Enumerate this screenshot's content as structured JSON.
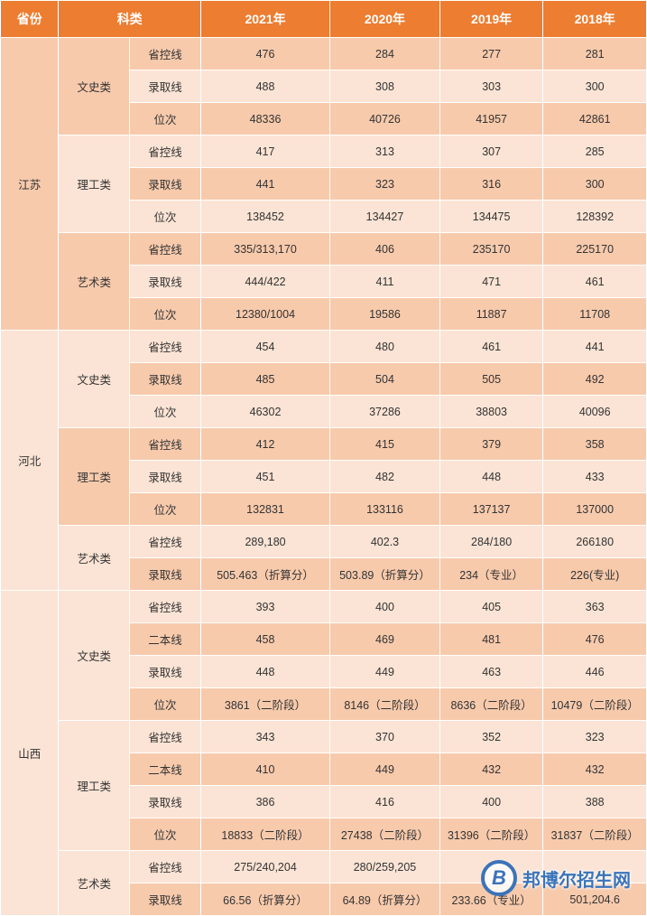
{
  "colors": {
    "header_bg": "#ed7d31",
    "header_text": "#ffffff",
    "row_dark": "#f7caac",
    "row_light": "#fbe4d5",
    "border": "#ffffff",
    "watermark": "#3b73b9"
  },
  "typography": {
    "header_fontsize": 14,
    "cell_fontsize": 12.5,
    "font_family": "Microsoft YaHei"
  },
  "layout": {
    "col_widths_pct": [
      9,
      11,
      11,
      20,
      17,
      16,
      16
    ]
  },
  "headers": {
    "province": "省份",
    "category": "科类",
    "y2021": "2021年",
    "y2020": "2020年",
    "y2019": "2019年",
    "y2018": "2018年"
  },
  "rows": [
    {
      "province": "江苏",
      "category": "文史类",
      "metric": "省控线",
      "y2021": "476",
      "y2020": "284",
      "y2019": "277",
      "y2018": "281",
      "shade": "dark",
      "prov_rowspan": 9,
      "cat_rowspan": 3
    },
    {
      "metric": "录取线",
      "y2021": "488",
      "y2020": "308",
      "y2019": "303",
      "y2018": "300",
      "shade": "light"
    },
    {
      "metric": "位次",
      "y2021": "48336",
      "y2020": "40726",
      "y2019": "41957",
      "y2018": "42861",
      "shade": "dark"
    },
    {
      "category": "理工类",
      "metric": "省控线",
      "y2021": "417",
      "y2020": "313",
      "y2019": "307",
      "y2018": "285",
      "shade": "light",
      "cat_rowspan": 3
    },
    {
      "metric": "录取线",
      "y2021": "441",
      "y2020": "323",
      "y2019": "316",
      "y2018": "300",
      "shade": "dark"
    },
    {
      "metric": "位次",
      "y2021": "138452",
      "y2020": "134427",
      "y2019": "134475",
      "y2018": "128392",
      "shade": "light"
    },
    {
      "category": "艺术类",
      "metric": "省控线",
      "y2021": "335/313,170",
      "y2020": "406",
      "y2019": "235170",
      "y2018": "225170",
      "shade": "dark",
      "cat_rowspan": 3
    },
    {
      "metric": "录取线",
      "y2021": "444/422",
      "y2020": "411",
      "y2019": "471",
      "y2018": "461",
      "shade": "light"
    },
    {
      "metric": "位次",
      "y2021": "12380/1004",
      "y2020": "19586",
      "y2019": "11887",
      "y2018": "11708",
      "shade": "dark"
    },
    {
      "province": "河北",
      "category": "文史类",
      "metric": "省控线",
      "y2021": "454",
      "y2020": "480",
      "y2019": "461",
      "y2018": "441",
      "shade": "light",
      "prov_rowspan": 8,
      "cat_rowspan": 3
    },
    {
      "metric": "录取线",
      "y2021": "485",
      "y2020": "504",
      "y2019": "505",
      "y2018": "492",
      "shade": "dark"
    },
    {
      "metric": "位次",
      "y2021": "46302",
      "y2020": "37286",
      "y2019": "38803",
      "y2018": "40096",
      "shade": "light"
    },
    {
      "category": "理工类",
      "metric": "省控线",
      "y2021": "412",
      "y2020": "415",
      "y2019": "379",
      "y2018": "358",
      "shade": "dark",
      "cat_rowspan": 3
    },
    {
      "metric": "录取线",
      "y2021": "451",
      "y2020": "482",
      "y2019": "448",
      "y2018": "433",
      "shade": "light"
    },
    {
      "metric": "位次",
      "y2021": "132831",
      "y2020": "133116",
      "y2019": "137137",
      "y2018": "137000",
      "shade": "dark"
    },
    {
      "category": "艺术类",
      "metric": "省控线",
      "y2021": "289,180",
      "y2020": "402.3",
      "y2019": "284/180",
      "y2018": "266180",
      "shade": "light",
      "cat_rowspan": 2
    },
    {
      "metric": "录取线",
      "y2021": "505.463（折算分）",
      "y2020": "503.89（折算分）",
      "y2019": "234（专业）",
      "y2018": "226(专业)",
      "shade": "dark"
    },
    {
      "province": "山西",
      "category": "文史类",
      "metric": "省控线",
      "y2021": "393",
      "y2020": "400",
      "y2019": "405",
      "y2018": "363",
      "shade": "light",
      "prov_rowspan": 10,
      "cat_rowspan": 4
    },
    {
      "metric": "二本线",
      "y2021": "458",
      "y2020": "469",
      "y2019": "481",
      "y2018": "476",
      "shade": "dark"
    },
    {
      "metric": "录取线",
      "y2021": "448",
      "y2020": "449",
      "y2019": "463",
      "y2018": "446",
      "shade": "light"
    },
    {
      "metric": "位次",
      "y2021": "3861（二阶段）",
      "y2020": "8146（二阶段）",
      "y2019": "8636（二阶段）",
      "y2018": "10479（二阶段）",
      "shade": "dark"
    },
    {
      "category": "理工类",
      "metric": "省控线",
      "y2021": "343",
      "y2020": "370",
      "y2019": "352",
      "y2018": "323",
      "shade": "light",
      "cat_rowspan": 4
    },
    {
      "metric": "二本线",
      "y2021": "410",
      "y2020": "449",
      "y2019": "432",
      "y2018": "432",
      "shade": "dark"
    },
    {
      "metric": "录取线",
      "y2021": "386",
      "y2020": "416",
      "y2019": "400",
      "y2018": "388",
      "shade": "light"
    },
    {
      "metric": "位次",
      "y2021": "18833（二阶段）",
      "y2020": "27438（二阶段）",
      "y2019": "31396（二阶段）",
      "y2018": "31837（二阶段）",
      "shade": "dark"
    },
    {
      "category": "艺术类",
      "metric": "省控线",
      "y2021": "275/240,204",
      "y2020": "280/259,205",
      "y2019": "",
      "y2018": "",
      "shade": "light",
      "cat_rowspan": 2
    },
    {
      "metric": "录取线",
      "y2021": "66.56（折算分）",
      "y2020": "64.89（折算分）",
      "y2019": "233.66（专业）",
      "y2018": "501,204.6",
      "shade": "dark"
    }
  ],
  "watermark": {
    "letter": "B",
    "text": "邦博尔招生网"
  }
}
